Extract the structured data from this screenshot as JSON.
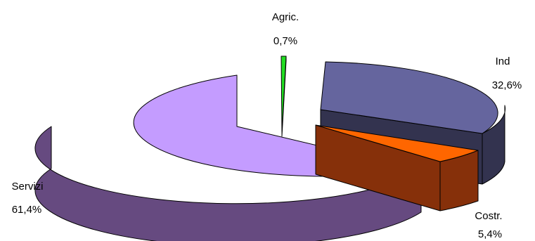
{
  "chart_data": {
    "type": "pie",
    "style": "3d-exploded",
    "title": "",
    "slices": [
      {
        "label": "Agric.",
        "value_label": "0,7%",
        "value": 0.7,
        "top_color": "#22dd22",
        "side_color": "#0b6b0b"
      },
      {
        "label": "Ind",
        "value_label": "32,6%",
        "value": 32.6,
        "top_color": "#65659e",
        "side_color": "#33334f"
      },
      {
        "label": "Costr.",
        "value_label": "5,4%",
        "value": 5.4,
        "top_color": "#ff6600",
        "side_color": "#86300a"
      },
      {
        "label": "Servizi",
        "value_label": "61,4%",
        "value": 61.4,
        "top_color": "#c49cff",
        "side_color": "#664a80"
      }
    ]
  }
}
